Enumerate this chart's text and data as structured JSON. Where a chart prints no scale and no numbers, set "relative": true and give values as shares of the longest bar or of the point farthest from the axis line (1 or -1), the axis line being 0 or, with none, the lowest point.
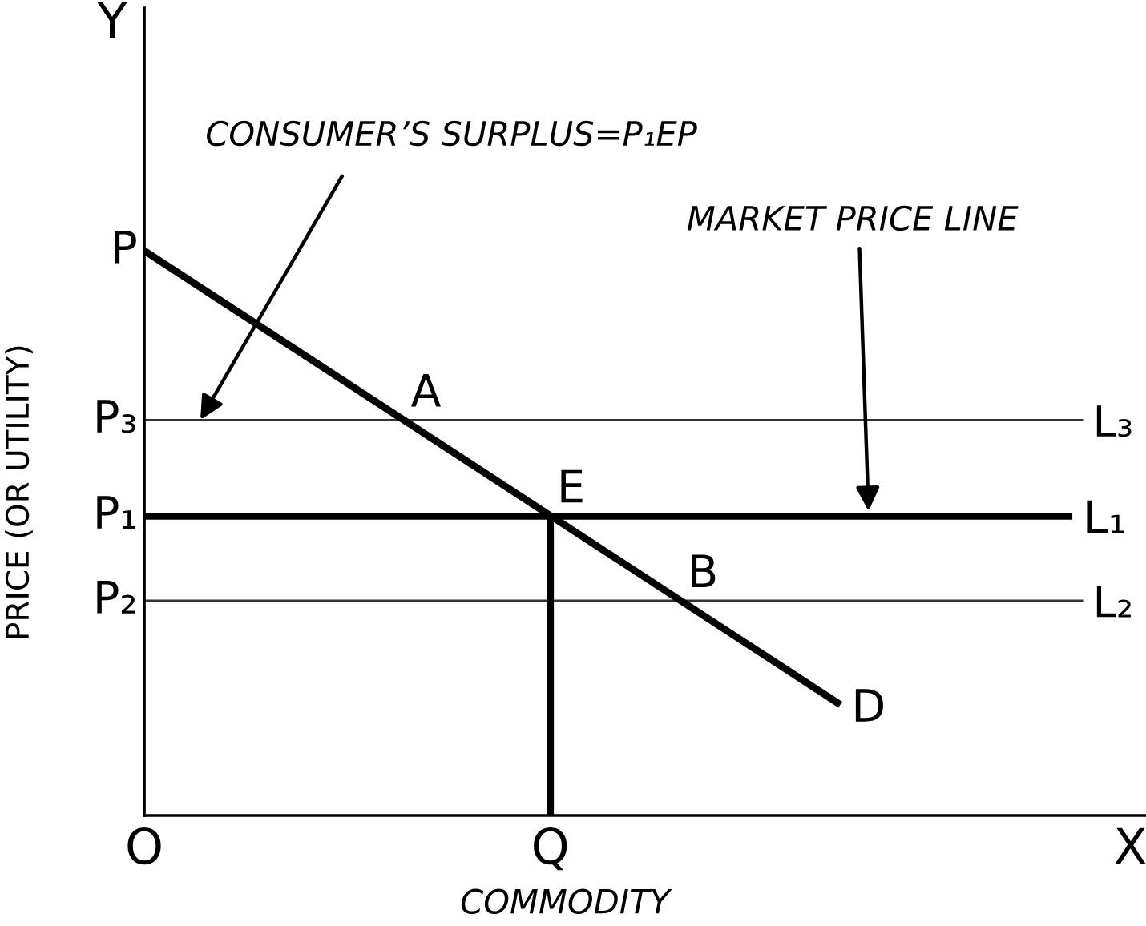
{
  "chart_data": {
    "type": "line",
    "relative": true,
    "xlabel": "COMMODITY",
    "ylabel": "PRICE (OR UTILITY)",
    "tick_labels": "x",
    "categories": [
      "O",
      null,
      null,
      null,
      null,
      null,
      null,
      "Q",
      null,
      null,
      null,
      null,
      null,
      null,
      null,
      null,
      null,
      "X"
    ],
    "series": [
      {
        "name": "D",
        "color": "#000000",
        "values": [
          1,
          0.933,
          0.866,
          0.799,
          0.732,
          0.665,
          0.598,
          0.531,
          0.464,
          0.397,
          0.33,
          0.263,
          0.196,
          null,
          null,
          null,
          null,
          null
        ]
      },
      {
        "name": "L₁",
        "color": "#000000",
        "values": [
          0.53,
          0.53,
          0.53,
          0.53,
          0.53,
          0.53,
          0.53,
          0.53,
          0.53,
          0.53,
          0.53,
          0.53,
          0.53,
          0.53,
          0.53,
          0.53,
          0.53,
          null
        ]
      },
      {
        "color": "#000000",
        "x": [
          "Q",
          "Q"
        ],
        "values": [
          0,
          0.53
        ]
      }
    ],
    "ref_lines": [
      {
        "axis": "y",
        "value": 0.7,
        "label": "L₃",
        "color": "#333333"
      },
      {
        "axis": "y",
        "value": 0.38,
        "label": "L₂",
        "color": "#333333"
      }
    ],
    "annotations": [
      "CONSUMER’S SURPLUS=P₁EP",
      "MARKET PRICE LINE",
      "Y",
      {
        "text": "P",
        "x": "O",
        "y": 1
      },
      {
        "text": "P₃",
        "x": "O",
        "y": 0.7
      },
      {
        "text": "P₁",
        "x": "O",
        "y": 0.53
      },
      {
        "text": "P₂",
        "x": "O",
        "y": 0.38
      },
      {
        "text": "A",
        "y": 0.7
      },
      {
        "text": "E",
        "x": "Q",
        "y": 0.53
      },
      {
        "text": "B",
        "y": 0.38
      }
    ]
  }
}
